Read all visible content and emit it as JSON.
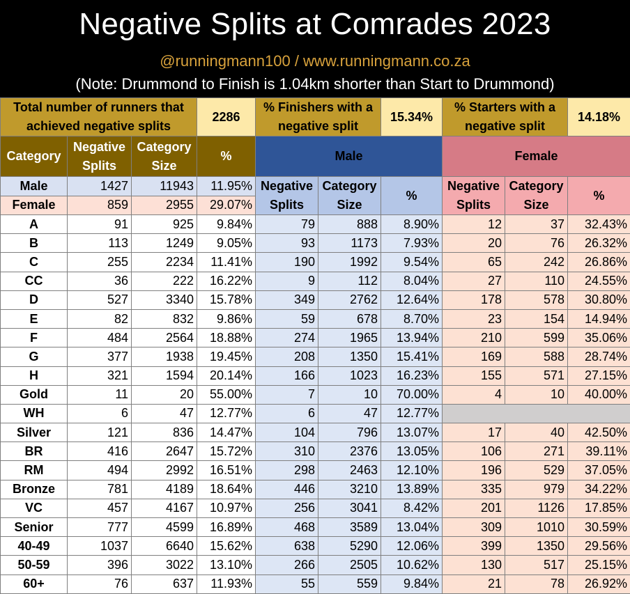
{
  "title": "Negative Splits at Comrades 2023",
  "handle": "@runningmann100 / www.runningmann.co.za",
  "note": "(Note: Drummond to Finish is 1.04km shorter than Start to Drummond)",
  "summary": {
    "total_label": "Total number of runners that achieved negative splits",
    "total_value": "2286",
    "finishers_label": "% Finishers with a negative split",
    "finishers_value": "15.34%",
    "starters_label": "% Starters with a negative split",
    "starters_value": "14.18%"
  },
  "headers": {
    "category": "Category",
    "neg_splits": "Negative Splits",
    "category_size": "Category Size",
    "pct": "%",
    "male": "Male",
    "female": "Female"
  },
  "gender_rows": [
    {
      "label": "Male",
      "neg": "1427",
      "size": "11943",
      "pct": "11.95%"
    },
    {
      "label": "Female",
      "neg": "859",
      "size": "2955",
      "pct": "29.07%"
    }
  ],
  "chart_data": {
    "type": "table",
    "title": "Negative Splits at Comrades 2023",
    "columns": [
      "Category",
      "Negative Splits",
      "Category Size",
      "%",
      "Male Negative Splits",
      "Male Category Size",
      "Male %",
      "Female Negative Splits",
      "Female Category Size",
      "Female %"
    ],
    "rows": [
      [
        "A",
        "91",
        "925",
        "9.84%",
        "79",
        "888",
        "8.90%",
        "12",
        "37",
        "32.43%"
      ],
      [
        "B",
        "113",
        "1249",
        "9.05%",
        "93",
        "1173",
        "7.93%",
        "20",
        "76",
        "26.32%"
      ],
      [
        "C",
        "255",
        "2234",
        "11.41%",
        "190",
        "1992",
        "9.54%",
        "65",
        "242",
        "26.86%"
      ],
      [
        "CC",
        "36",
        "222",
        "16.22%",
        "9",
        "112",
        "8.04%",
        "27",
        "110",
        "24.55%"
      ],
      [
        "D",
        "527",
        "3340",
        "15.78%",
        "349",
        "2762",
        "12.64%",
        "178",
        "578",
        "30.80%"
      ],
      [
        "E",
        "82",
        "832",
        "9.86%",
        "59",
        "678",
        "8.70%",
        "23",
        "154",
        "14.94%"
      ],
      [
        "F",
        "484",
        "2564",
        "18.88%",
        "274",
        "1965",
        "13.94%",
        "210",
        "599",
        "35.06%"
      ],
      [
        "G",
        "377",
        "1938",
        "19.45%",
        "208",
        "1350",
        "15.41%",
        "169",
        "588",
        "28.74%"
      ],
      [
        "H",
        "321",
        "1594",
        "20.14%",
        "166",
        "1023",
        "16.23%",
        "155",
        "571",
        "27.15%"
      ],
      [
        "Gold",
        "11",
        "20",
        "55.00%",
        "7",
        "10",
        "70.00%",
        "4",
        "10",
        "40.00%"
      ],
      [
        "WH",
        "6",
        "47",
        "12.77%",
        "6",
        "47",
        "12.77%",
        "",
        "",
        ""
      ],
      [
        "Silver",
        "121",
        "836",
        "14.47%",
        "104",
        "796",
        "13.07%",
        "17",
        "40",
        "42.50%"
      ],
      [
        "BR",
        "416",
        "2647",
        "15.72%",
        "310",
        "2376",
        "13.05%",
        "106",
        "271",
        "39.11%"
      ],
      [
        "RM",
        "494",
        "2992",
        "16.51%",
        "298",
        "2463",
        "12.10%",
        "196",
        "529",
        "37.05%"
      ],
      [
        "Bronze",
        "781",
        "4189",
        "18.64%",
        "446",
        "3210",
        "13.89%",
        "335",
        "979",
        "34.22%"
      ],
      [
        "VC",
        "457",
        "4167",
        "10.97%",
        "256",
        "3041",
        "8.42%",
        "201",
        "1126",
        "17.85%"
      ],
      [
        "Senior",
        "777",
        "4599",
        "16.89%",
        "468",
        "3589",
        "13.04%",
        "309",
        "1010",
        "30.59%"
      ],
      [
        "40-49",
        "1037",
        "6640",
        "15.62%",
        "638",
        "5290",
        "12.06%",
        "399",
        "1350",
        "29.56%"
      ],
      [
        "50-59",
        "396",
        "3022",
        "13.10%",
        "266",
        "2505",
        "10.62%",
        "130",
        "517",
        "25.15%"
      ],
      [
        "60+",
        "76",
        "637",
        "11.93%",
        "55",
        "559",
        "9.84%",
        "21",
        "78",
        "26.92%"
      ]
    ],
    "group_starts": [
      9,
      11,
      16
    ]
  },
  "colors": {
    "gold_dark": "#c09a2c",
    "gold_light": "#fde9a9",
    "brown": "#7f6000",
    "male_header": "#2f5597",
    "female_header": "#d67b86",
    "male_row": "#dde6f5",
    "female_row": "#fde1d3"
  }
}
